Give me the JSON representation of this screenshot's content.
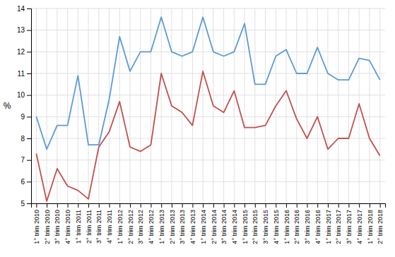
{
  "chart_data": {
    "type": "line",
    "ylabel": "%",
    "categories": [
      "1° trim 2010",
      "2° trim 2010",
      "3° trim 2010",
      "4° trim 2010",
      "1° trim 2011",
      "2° trim 2011",
      "3° trim 2011",
      "4° trim 2011",
      "1° trim 2012",
      "2° trim 2012",
      "3° trim 2012",
      "4° trim 2012",
      "1° trim 2013",
      "2° trim 2013",
      "3° trim 2013",
      "4° trim 2013",
      "1° trim 2014",
      "2° trim 2014",
      "3° trim 2014",
      "4° trim 2014",
      "1° trim 2015",
      "2° trim 2015",
      "3° trim 2015",
      "4° trim 2015",
      "1° trim 2016",
      "2° trim 2016",
      "3° trim 2016",
      "4° trim 2016",
      "1° trim 2017",
      "2° trim 2017",
      "3° trim 2017",
      "4° trim 2017",
      "1° trim 2018",
      "2° trim 2018"
    ],
    "series": [
      {
        "color": "#5b9bd5",
        "values": [
          9.0,
          7.5,
          8.6,
          8.6,
          10.9,
          7.7,
          7.7,
          9.8,
          12.7,
          11.1,
          12.0,
          12.0,
          13.6,
          12.0,
          11.8,
          12.0,
          13.6,
          12.0,
          11.8,
          12.0,
          13.3,
          10.5,
          10.5,
          11.8,
          12.1,
          11.0,
          11.0,
          12.2,
          11.0,
          10.7,
          10.7,
          11.7,
          11.6,
          10.7
        ]
      },
      {
        "color": "#c0504d",
        "values": [
          7.3,
          5.1,
          6.6,
          5.8,
          5.6,
          5.2,
          7.6,
          8.3,
          9.7,
          7.6,
          7.4,
          7.7,
          11.0,
          9.5,
          9.2,
          8.6,
          11.1,
          9.5,
          9.2,
          10.2,
          8.5,
          8.5,
          8.6,
          9.5,
          10.2,
          8.9,
          8.0,
          9.0,
          7.5,
          8.0,
          8.0,
          9.6,
          8.0,
          7.2
        ]
      }
    ],
    "ylim": [
      5,
      14
    ],
    "yticks": [
      5,
      6,
      7,
      8,
      9,
      10,
      11,
      12,
      13,
      14
    ],
    "grid": true
  }
}
